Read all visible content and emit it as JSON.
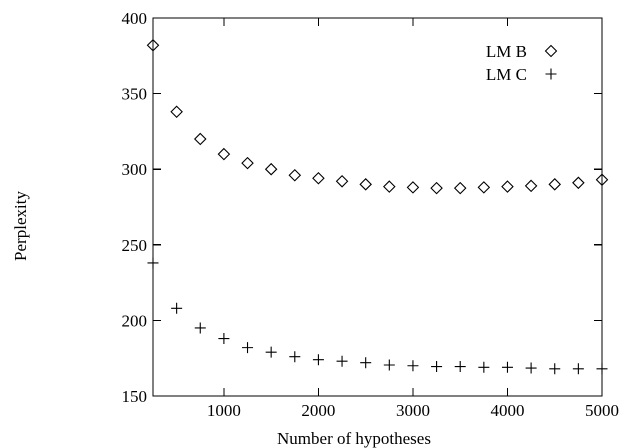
{
  "chart_data": {
    "type": "scatter",
    "title": "",
    "xlabel": "Number of hypotheses",
    "ylabel": "Perplexity",
    "xlim": [
      250,
      5000
    ],
    "ylim": [
      150,
      400
    ],
    "xticks": [
      1000,
      2000,
      3000,
      4000,
      5000
    ],
    "xtick_labels": [
      "1000",
      "2000",
      "3000",
      "4000",
      "5000"
    ],
    "yticks": [
      150,
      200,
      250,
      300,
      350,
      400
    ],
    "ytick_labels": [
      "150",
      "200",
      "250",
      "300",
      "350",
      "400"
    ],
    "grid": false,
    "legend_position": "top-right",
    "series": [
      {
        "name": "LM B",
        "marker": "diamond",
        "color": "#000000",
        "points": [
          [
            250,
            382
          ],
          [
            500,
            338
          ],
          [
            750,
            320
          ],
          [
            1000,
            310
          ],
          [
            1250,
            304
          ],
          [
            1500,
            300
          ],
          [
            1750,
            296
          ],
          [
            2000,
            294
          ],
          [
            2250,
            292
          ],
          [
            2500,
            290
          ],
          [
            2750,
            288.5
          ],
          [
            3000,
            288
          ],
          [
            3250,
            287.5
          ],
          [
            3500,
            287.5
          ],
          [
            3750,
            288
          ],
          [
            4000,
            288.5
          ],
          [
            4250,
            289
          ],
          [
            4500,
            290
          ],
          [
            4750,
            291
          ],
          [
            5000,
            293
          ]
        ]
      },
      {
        "name": "LM C",
        "marker": "plus",
        "color": "#000000",
        "points": [
          [
            250,
            238
          ],
          [
            500,
            208
          ],
          [
            750,
            195
          ],
          [
            1000,
            188
          ],
          [
            1250,
            182
          ],
          [
            1500,
            179
          ],
          [
            1750,
            176
          ],
          [
            2000,
            174
          ],
          [
            2250,
            173
          ],
          [
            2500,
            172
          ],
          [
            2750,
            170.5
          ],
          [
            3000,
            170
          ],
          [
            3250,
            169.5
          ],
          [
            3500,
            169.5
          ],
          [
            3750,
            169
          ],
          [
            4000,
            169
          ],
          [
            4250,
            168.5
          ],
          [
            4500,
            168
          ],
          [
            4750,
            168
          ],
          [
            5000,
            168
          ]
        ]
      }
    ]
  }
}
